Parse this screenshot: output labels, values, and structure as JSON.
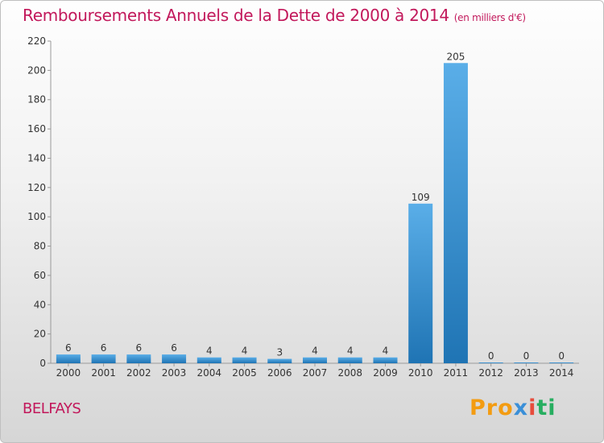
{
  "title": "Remboursements Annuels de la Dette de 2000 à 2014",
  "unit": "(en milliers d'€)",
  "commune": "BELFAYS",
  "logo": {
    "p1": "Pro",
    "p2": "x",
    "p3": "i",
    "p4": "ti"
  },
  "colors": {
    "accent": "#c2185b",
    "bar_top": "#5aaee8",
    "bar_bottom": "#1f74b4"
  },
  "chart_data": {
    "type": "bar",
    "categories": [
      "2000",
      "2001",
      "2002",
      "2003",
      "2004",
      "2005",
      "2006",
      "2007",
      "2008",
      "2009",
      "2010",
      "2011",
      "2012",
      "2013",
      "2014"
    ],
    "values": [
      6,
      6,
      6,
      6,
      4,
      4,
      3,
      4,
      4,
      4,
      109,
      205,
      0,
      0,
      0
    ],
    "data_labels": [
      "6",
      "6",
      "6",
      "6",
      "4",
      "4",
      "3",
      "4",
      "4",
      "4",
      "109",
      "205",
      "0",
      "0",
      "0"
    ],
    "yticks": [
      "0",
      "20",
      "40",
      "60",
      "80",
      "100",
      "120",
      "140",
      "160",
      "180",
      "200",
      "220"
    ],
    "ylim": [
      0,
      220
    ],
    "grid": false,
    "legend": "none"
  }
}
